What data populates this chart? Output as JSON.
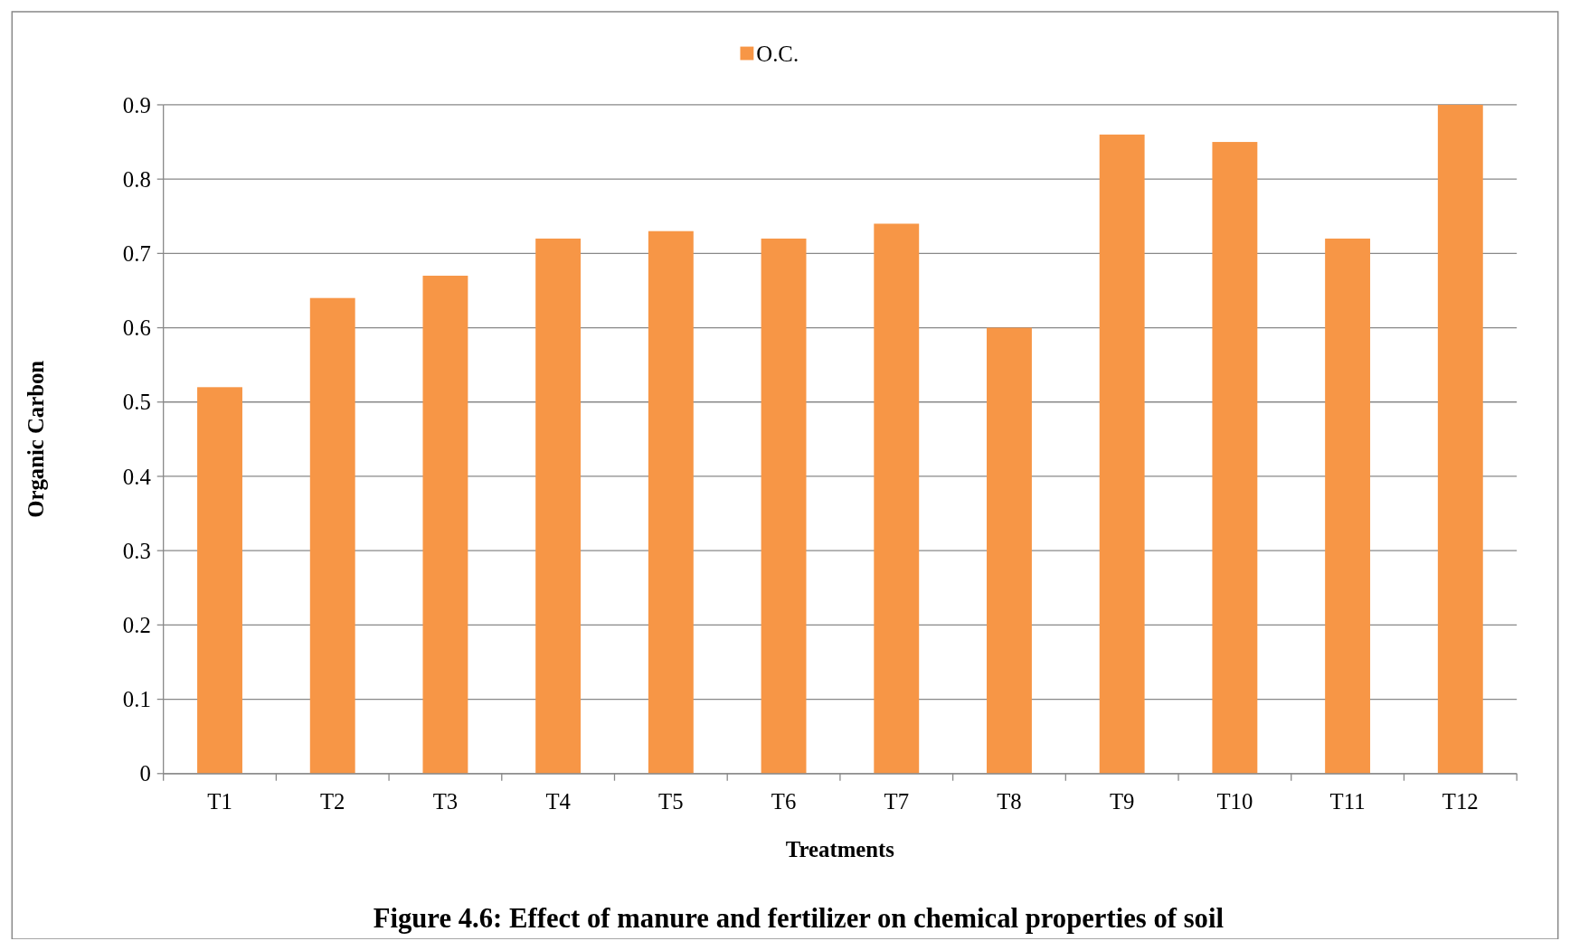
{
  "chart_data": {
    "type": "bar",
    "title": "Figure 4.6: Effect of manure and fertilizer on chemical properties of soil",
    "xlabel": "Treatments",
    "ylabel": "Organic Carbon",
    "categories": [
      "T1",
      "T2",
      "T3",
      "T4",
      "T5",
      "T6",
      "T7",
      "T8",
      "T9",
      "T10",
      "T11",
      "T12"
    ],
    "series": [
      {
        "name": "O.C.",
        "color": "#f79646",
        "values": [
          0.52,
          0.64,
          0.67,
          0.72,
          0.73,
          0.72,
          0.74,
          0.6,
          0.86,
          0.85,
          0.72,
          0.9
        ]
      }
    ],
    "ylim": [
      0,
      0.9
    ],
    "yticks": [
      0,
      0.1,
      0.2,
      0.3,
      0.4,
      0.5,
      0.6,
      0.7,
      0.8,
      0.9
    ],
    "grid": "y",
    "legend": "top"
  }
}
